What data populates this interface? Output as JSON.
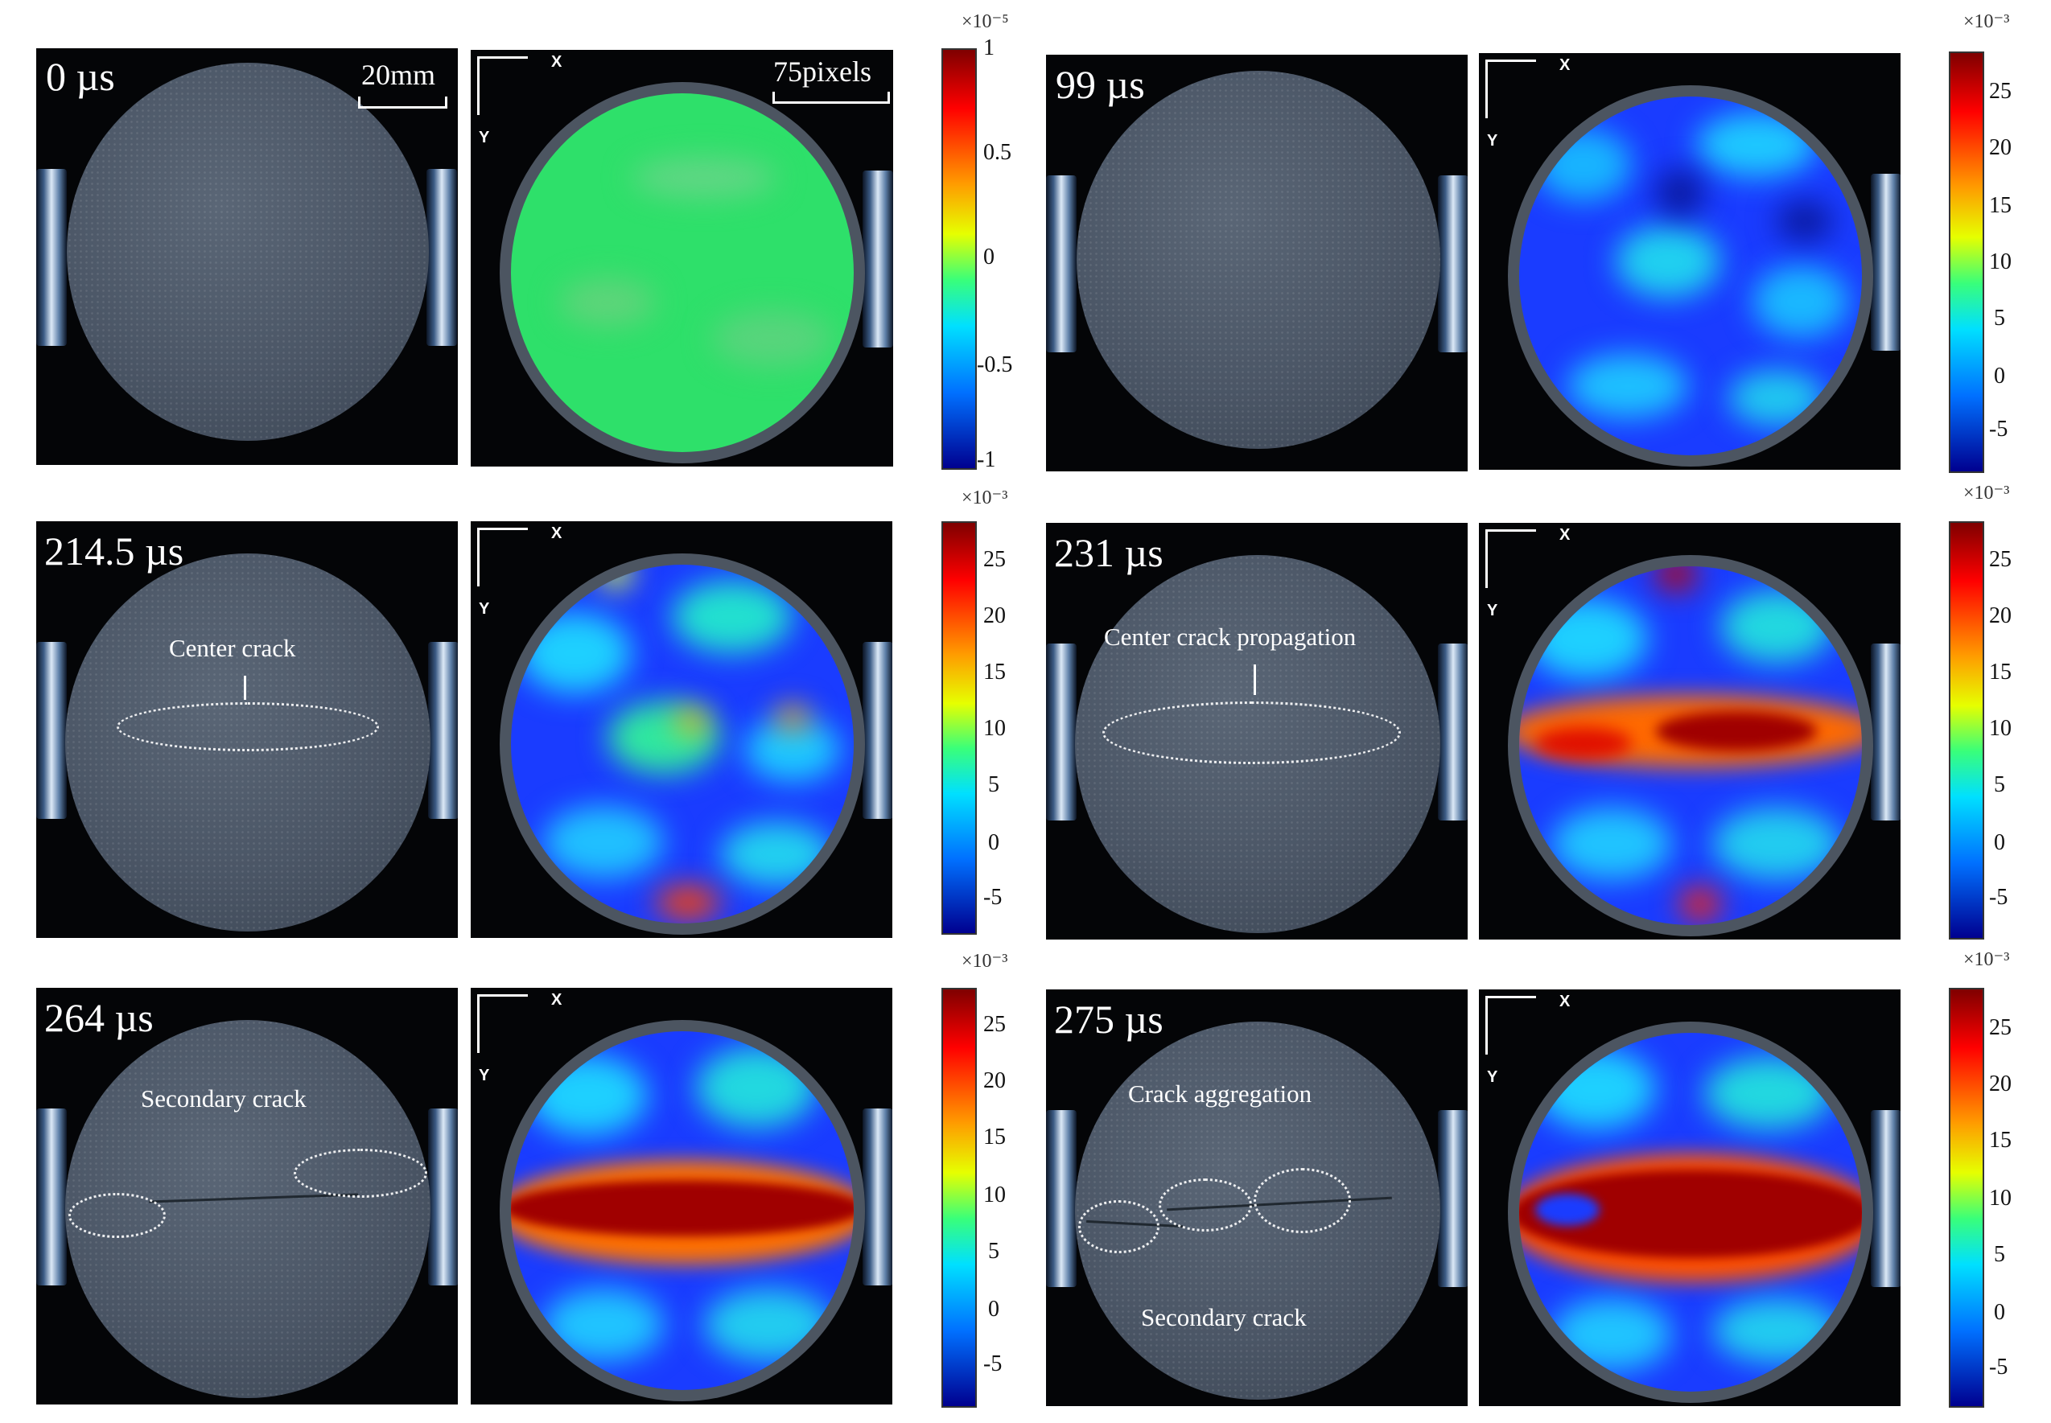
{
  "panels": [
    {
      "time": "0 µs"
    },
    {
      "time": "99 µs"
    },
    {
      "time": "214.5 µs"
    },
    {
      "time": "231 µs"
    },
    {
      "time": "264 µs"
    },
    {
      "time": "275 µs"
    }
  ],
  "scale": {
    "length_label": "20mm",
    "pixel_label": "75pixels"
  },
  "axes": {
    "x": "X",
    "y": "Y"
  },
  "annotations": {
    "center_crack": "Center crack",
    "center_crack_propagation": "Center crack propagation",
    "secondary_crack_264": "Secondary crack",
    "crack_aggregation": "Crack aggregation",
    "secondary_crack_275": "Secondary crack"
  },
  "colorbars": [
    {
      "multiplier": "×10⁻⁵",
      "ticks": [
        "1",
        "0.5",
        "0",
        "-0.5",
        "-1"
      ],
      "range": [
        -1,
        1
      ]
    },
    {
      "multiplier": "×10⁻³",
      "ticks": [
        "25",
        "20",
        "15",
        "10",
        "5",
        "0",
        "-5"
      ],
      "range": [
        -8,
        29
      ]
    },
    {
      "multiplier": "×10⁻³",
      "ticks": [
        "25",
        "20",
        "15",
        "10",
        "5",
        "0",
        "-5"
      ],
      "range": [
        -8,
        29
      ]
    },
    {
      "multiplier": "×10⁻³",
      "ticks": [
        "25",
        "20",
        "15",
        "10",
        "5",
        "0",
        "-5"
      ],
      "range": [
        -8,
        29
      ]
    },
    {
      "multiplier": "×10⁻³",
      "ticks": [
        "25",
        "20",
        "15",
        "10",
        "5",
        "0",
        "-5"
      ],
      "range": [
        -8,
        29
      ]
    },
    {
      "multiplier": "×10⁻³",
      "ticks": [
        "25",
        "20",
        "15",
        "10",
        "5",
        "0",
        "-5"
      ],
      "range": [
        -8,
        29
      ]
    }
  ],
  "colors": {
    "field_base_uniform": "#2ee06a",
    "field_base_blue": "#1a3cff",
    "band": "#b00000"
  }
}
